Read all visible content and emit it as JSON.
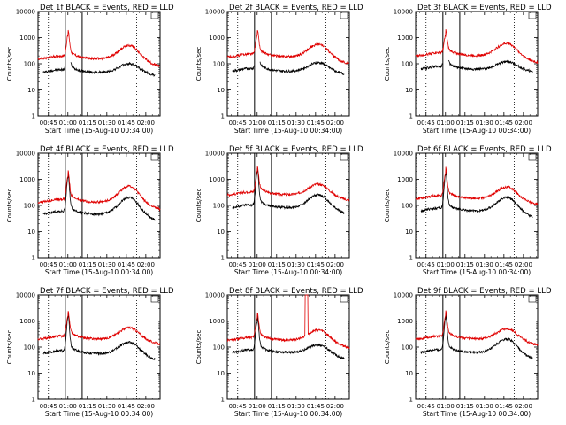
{
  "colors": {
    "events": "#000000",
    "lld": "#e00000",
    "axis": "#000000"
  },
  "chart_data": [
    {
      "type": "line",
      "title": "Det 1f BLACK = Events, RED = LLD",
      "xlabel": "Start Time (15-Aug-10 00:34:00)",
      "ylabel": "Counts/sec",
      "xlim": [
        "00:37",
        "02:11"
      ],
      "ylim": [
        1,
        10000
      ],
      "yscale": "log",
      "grid": false,
      "xticks": [
        "00:45",
        "01:00",
        "01:15",
        "01:30",
        "01:45",
        "02:00"
      ],
      "yticks": [
        "1",
        "10",
        "100",
        "1000",
        "10000"
      ],
      "dotted_lines": [
        "00:45",
        "01:53"
      ],
      "solid_lines": [
        "00:58",
        "01:11"
      ],
      "legend_box": "top-right",
      "series": [
        {
          "name": "Events",
          "color": "#000000",
          "x_start": "00:41",
          "x_end": "02:07",
          "baseline": 45,
          "peak": {
            "t": "01:00",
            "v": 600
          },
          "hump": {
            "t": "01:47",
            "v": 100
          },
          "end": 60,
          "gaps": [
            [
              "00:58",
              "01:02"
            ]
          ]
        },
        {
          "name": "LLD",
          "color": "#e00000",
          "x_start": "00:37",
          "x_end": "02:11",
          "baseline": 150,
          "peak": {
            "t": "01:00",
            "v": 950
          },
          "hump": {
            "t": "01:47",
            "v": 500
          },
          "end": 130
        }
      ]
    },
    {
      "type": "line",
      "title": "Det 2f BLACK = Events, RED = LLD",
      "xlabel": "Start Time (15-Aug-10 00:34:00)",
      "ylabel": "Counts/sec",
      "xlim": [
        "00:37",
        "02:11"
      ],
      "ylim": [
        1,
        10000
      ],
      "yscale": "log",
      "grid": false,
      "xticks": [
        "00:45",
        "01:00",
        "01:15",
        "01:30",
        "01:45",
        "02:00"
      ],
      "yticks": [
        "1",
        "10",
        "100",
        "1000",
        "10000"
      ],
      "dotted_lines": [
        "00:45",
        "01:53"
      ],
      "solid_lines": [
        "00:58",
        "01:11"
      ],
      "legend_box": "top-right",
      "series": [
        {
          "name": "Events",
          "color": "#000000",
          "x_start": "00:41",
          "x_end": "02:07",
          "baseline": 50,
          "peak": {
            "t": "01:00",
            "v": 550
          },
          "hump": {
            "t": "01:47",
            "v": 110
          },
          "end": 70,
          "gaps": [
            [
              "00:58",
              "01:02"
            ]
          ]
        },
        {
          "name": "LLD",
          "color": "#e00000",
          "x_start": "00:37",
          "x_end": "02:11",
          "baseline": 180,
          "peak": {
            "t": "01:00",
            "v": 1000
          },
          "hump": {
            "t": "01:47",
            "v": 550
          },
          "end": 160
        }
      ]
    },
    {
      "type": "line",
      "title": "Det 3f BLACK = Events, RED = LLD",
      "xlabel": "Start Time (15-Aug-10 00:34:00)",
      "ylabel": "Counts/sec",
      "xlim": [
        "00:37",
        "02:11"
      ],
      "ylim": [
        1,
        10000
      ],
      "yscale": "log",
      "grid": false,
      "xticks": [
        "00:45",
        "01:00",
        "01:15",
        "01:30",
        "01:45",
        "02:00"
      ],
      "yticks": [
        "1",
        "10",
        "100",
        "1000",
        "10000"
      ],
      "dotted_lines": [
        "00:45",
        "01:53"
      ],
      "solid_lines": [
        "00:58",
        "01:11"
      ],
      "legend_box": "top-right",
      "series": [
        {
          "name": "Events",
          "color": "#000000",
          "x_start": "00:41",
          "x_end": "02:07",
          "baseline": 60,
          "peak": {
            "t": "01:00",
            "v": 500
          },
          "hump": {
            "t": "01:47",
            "v": 120
          },
          "end": 80,
          "gaps": [
            [
              "00:58",
              "01:02"
            ]
          ]
        },
        {
          "name": "LLD",
          "color": "#e00000",
          "x_start": "00:37",
          "x_end": "02:11",
          "baseline": 200,
          "peak": {
            "t": "01:00",
            "v": 950
          },
          "hump": {
            "t": "01:47",
            "v": 600
          },
          "end": 180
        }
      ]
    },
    {
      "type": "line",
      "title": "Det 4f BLACK = Events, RED = LLD",
      "xlabel": "Start Time (15-Aug-10 00:34:00)",
      "ylabel": "Counts/sec",
      "xlim": [
        "00:37",
        "02:11"
      ],
      "ylim": [
        1,
        10000
      ],
      "yscale": "log",
      "grid": false,
      "xticks": [
        "00:45",
        "01:00",
        "01:15",
        "01:30",
        "01:45",
        "02:00"
      ],
      "yticks": [
        "1",
        "10",
        "100",
        "1000",
        "10000"
      ],
      "dotted_lines": [
        "00:45",
        "01:53"
      ],
      "solid_lines": [
        "00:58",
        "01:11"
      ],
      "legend_box": "top-right",
      "series": [
        {
          "name": "Events",
          "color": "#000000",
          "x_start": "00:41",
          "x_end": "02:07",
          "baseline": 45,
          "peak": {
            "t": "01:00",
            "v": 900
          },
          "hump": {
            "t": "01:47",
            "v": 200
          },
          "end": 70,
          "gaps": []
        },
        {
          "name": "LLD",
          "color": "#e00000",
          "x_start": "00:37",
          "x_end": "02:11",
          "baseline": 130,
          "peak": {
            "t": "01:00",
            "v": 1100
          },
          "hump": {
            "t": "01:47",
            "v": 550
          },
          "end": 160
        }
      ]
    },
    {
      "type": "line",
      "title": "Det 5f BLACK = Events, RED = LLD",
      "xlabel": "Start Time (15-Aug-10 00:34:00)",
      "ylabel": "Counts/sec",
      "xlim": [
        "00:37",
        "02:11"
      ],
      "ylim": [
        1,
        10000
      ],
      "yscale": "log",
      "grid": false,
      "xticks": [
        "00:45",
        "01:00",
        "01:15",
        "01:30",
        "01:45",
        "02:00"
      ],
      "yticks": [
        "1",
        "10",
        "100",
        "1000",
        "10000"
      ],
      "dotted_lines": [
        "00:45",
        "01:53"
      ],
      "solid_lines": [
        "00:58",
        "01:11"
      ],
      "legend_box": "top-right",
      "series": [
        {
          "name": "Events",
          "color": "#000000",
          "x_start": "00:41",
          "x_end": "02:07",
          "baseline": 80,
          "peak": {
            "t": "01:00",
            "v": 1400
          },
          "hump": {
            "t": "01:47",
            "v": 250
          },
          "end": 100,
          "gaps": []
        },
        {
          "name": "LLD",
          "color": "#e00000",
          "x_start": "00:37",
          "x_end": "02:11",
          "baseline": 250,
          "peak": {
            "t": "01:00",
            "v": 1600
          },
          "hump": {
            "t": "01:47",
            "v": 650
          },
          "end": 250
        }
      ]
    },
    {
      "type": "line",
      "title": "Det 6f BLACK = Events, RED = LLD",
      "xlabel": "Start Time (15-Aug-10 00:34:00)",
      "ylabel": "Counts/sec",
      "xlim": [
        "00:37",
        "02:11"
      ],
      "ylim": [
        1,
        10000
      ],
      "yscale": "log",
      "grid": false,
      "xticks": [
        "00:45",
        "01:00",
        "01:15",
        "01:30",
        "01:45",
        "02:00"
      ],
      "yticks": [
        "1",
        "10",
        "100",
        "1000",
        "10000"
      ],
      "dotted_lines": [
        "00:45",
        "01:53"
      ],
      "solid_lines": [
        "00:58",
        "01:11"
      ],
      "legend_box": "top-right",
      "series": [
        {
          "name": "Events",
          "color": "#000000",
          "x_start": "00:41",
          "x_end": "02:07",
          "baseline": 60,
          "peak": {
            "t": "01:00",
            "v": 1100
          },
          "hump": {
            "t": "01:47",
            "v": 200
          },
          "end": 70,
          "gaps": []
        },
        {
          "name": "LLD",
          "color": "#e00000",
          "x_start": "00:37",
          "x_end": "02:11",
          "baseline": 180,
          "peak": {
            "t": "01:00",
            "v": 1400
          },
          "hump": {
            "t": "01:47",
            "v": 500
          },
          "end": 180
        }
      ]
    },
    {
      "type": "line",
      "title": "Det 7f BLACK = Events, RED = LLD",
      "xlabel": "Start Time (15-Aug-10 00:34:00)",
      "ylabel": "Counts/sec",
      "xlim": [
        "00:37",
        "02:11"
      ],
      "ylim": [
        1,
        10000
      ],
      "yscale": "log",
      "grid": false,
      "xticks": [
        "00:45",
        "01:00",
        "01:15",
        "01:30",
        "01:45",
        "02:00"
      ],
      "yticks": [
        "1",
        "10",
        "100",
        "1000",
        "10000"
      ],
      "dotted_lines": [
        "00:45",
        "01:53"
      ],
      "solid_lines": [
        "00:58",
        "01:11"
      ],
      "legend_box": "top-right",
      "series": [
        {
          "name": "Events",
          "color": "#000000",
          "x_start": "00:41",
          "x_end": "02:07",
          "baseline": 55,
          "peak": {
            "t": "01:00",
            "v": 1000
          },
          "hump": {
            "t": "01:47",
            "v": 150
          },
          "end": 55,
          "gaps": []
        },
        {
          "name": "LLD",
          "color": "#e00000",
          "x_start": "00:37",
          "x_end": "02:11",
          "baseline": 200,
          "peak": {
            "t": "01:00",
            "v": 1200
          },
          "hump": {
            "t": "01:47",
            "v": 550
          },
          "end": 230
        }
      ]
    },
    {
      "type": "line",
      "title": "Det 8f BLACK = Events, RED = LLD",
      "xlabel": "Start Time (15-Aug-10 00:34:00)",
      "ylabel": "Counts/sec",
      "xlim": [
        "00:37",
        "02:11"
      ],
      "ylim": [
        1,
        10000
      ],
      "yscale": "log",
      "grid": false,
      "xticks": [
        "00:45",
        "01:00",
        "01:15",
        "01:30",
        "01:45",
        "02:00"
      ],
      "yticks": [
        "1",
        "10",
        "100",
        "1000",
        "10000"
      ],
      "dotted_lines": [
        "00:45",
        "01:53"
      ],
      "solid_lines": [
        "00:58",
        "01:11"
      ],
      "legend_box": "top-right",
      "series": [
        {
          "name": "Events",
          "color": "#000000",
          "x_start": "00:41",
          "x_end": "02:07",
          "baseline": 60,
          "peak": {
            "t": "01:00",
            "v": 800
          },
          "hump": {
            "t": "01:47",
            "v": 120
          },
          "end": 40,
          "gaps": []
        },
        {
          "name": "LLD",
          "color": "#e00000",
          "x_start": "00:37",
          "x_end": "02:11",
          "baseline": 180,
          "peak": {
            "t": "01:00",
            "v": 1100
          },
          "hump": {
            "t": "01:47",
            "v": 450
          },
          "end": 120,
          "spike": {
            "t0": "01:37",
            "t1": "01:39",
            "v": 10000
          }
        }
      ]
    },
    {
      "type": "line",
      "title": "Det 9f BLACK = Events, RED = LLD",
      "xlabel": "Start Time (15-Aug-10 00:34:00)",
      "ylabel": "Counts/sec",
      "xlim": [
        "00:37",
        "02:11"
      ],
      "ylim": [
        1,
        10000
      ],
      "yscale": "log",
      "grid": false,
      "xticks": [
        "00:45",
        "01:00",
        "01:15",
        "01:30",
        "01:45",
        "02:00"
      ],
      "yticks": [
        "1",
        "10",
        "100",
        "1000",
        "10000"
      ],
      "dotted_lines": [
        "00:45",
        "01:53"
      ],
      "solid_lines": [
        "00:58",
        "01:11"
      ],
      "legend_box": "top-right",
      "series": [
        {
          "name": "Events",
          "color": "#000000",
          "x_start": "00:41",
          "x_end": "02:07",
          "baseline": 60,
          "peak": {
            "t": "01:00",
            "v": 1000
          },
          "hump": {
            "t": "01:47",
            "v": 200
          },
          "end": 70,
          "gaps": []
        },
        {
          "name": "LLD",
          "color": "#e00000",
          "x_start": "00:37",
          "x_end": "02:11",
          "baseline": 200,
          "peak": {
            "t": "01:00",
            "v": 1200
          },
          "hump": {
            "t": "01:47",
            "v": 500
          },
          "end": 180
        }
      ]
    }
  ]
}
